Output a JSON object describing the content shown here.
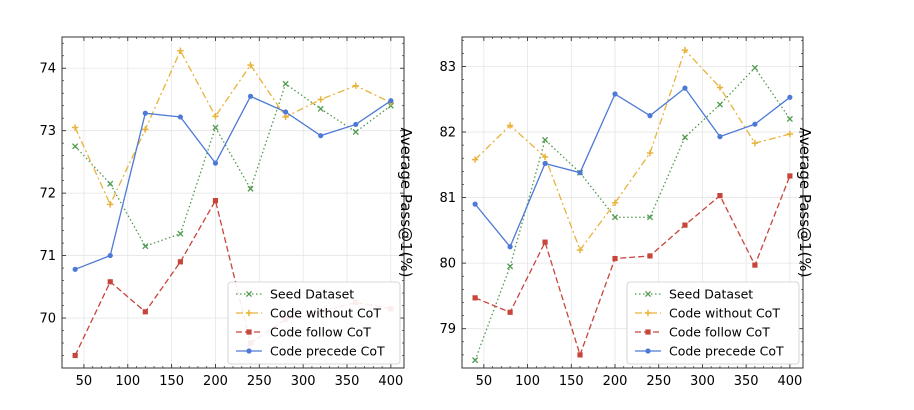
{
  "chart_data": [
    {
      "type": "line",
      "title": "",
      "xlabel": "",
      "ylabel": "Average Pass@1(%)",
      "xlim": [
        25,
        415
      ],
      "ylim": [
        69.2,
        74.5
      ],
      "xticks": [
        50,
        100,
        150,
        200,
        250,
        300,
        350,
        400
      ],
      "yticks": [
        70,
        71,
        72,
        73,
        74
      ],
      "grid": true,
      "legend_position": "lower-right",
      "x": [
        40,
        80,
        120,
        160,
        200,
        240,
        280,
        320,
        360,
        400
      ],
      "series": [
        {
          "name": "Seed Dataset",
          "color": "#4f9a4f",
          "marker": "x",
          "dash": "dotted",
          "values": [
            72.75,
            72.15,
            71.15,
            71.35,
            73.05,
            72.07,
            73.75,
            73.35,
            72.98,
            73.4
          ]
        },
        {
          "name": "Code without CoT",
          "color": "#e8b33a",
          "marker": "+",
          "dash": "dashdot",
          "values": [
            73.05,
            71.82,
            73.02,
            74.28,
            73.23,
            74.05,
            73.22,
            73.5,
            73.72,
            73.45
          ]
        },
        {
          "name": "Code follow CoT",
          "color": "#c7453a",
          "marker": "s",
          "dash": "dashed",
          "values": [
            69.4,
            70.58,
            70.1,
            70.9,
            71.88,
            69.6,
            69.98,
            70.1,
            70.25,
            70.15
          ]
        },
        {
          "name": "Code precede CoT",
          "color": "#4e79d6",
          "marker": "o",
          "dash": "solid",
          "values": [
            70.78,
            71.0,
            73.28,
            73.22,
            72.48,
            73.55,
            73.3,
            72.92,
            73.1,
            73.48
          ]
        }
      ]
    },
    {
      "type": "line",
      "title": "",
      "xlabel": "",
      "ylabel": "Average Pass@1(%)",
      "xlim": [
        25,
        415
      ],
      "ylim": [
        78.4,
        83.45
      ],
      "xticks": [
        50,
        100,
        150,
        200,
        250,
        300,
        350,
        400
      ],
      "yticks": [
        79,
        80,
        81,
        82,
        83
      ],
      "grid": true,
      "legend_position": "lower-right",
      "x": [
        40,
        80,
        120,
        160,
        200,
        240,
        280,
        320,
        360,
        400
      ],
      "series": [
        {
          "name": "Seed Dataset",
          "color": "#4f9a4f",
          "marker": "x",
          "dash": "dotted",
          "values": [
            78.52,
            79.95,
            81.88,
            81.38,
            80.7,
            80.7,
            81.92,
            82.42,
            82.98,
            82.2
          ]
        },
        {
          "name": "Code without CoT",
          "color": "#e8b33a",
          "marker": "+",
          "dash": "dashdot",
          "values": [
            81.58,
            82.1,
            81.62,
            80.2,
            80.92,
            81.68,
            83.25,
            82.68,
            81.83,
            81.97
          ]
        },
        {
          "name": "Code follow CoT",
          "color": "#c7453a",
          "marker": "s",
          "dash": "dashed",
          "values": [
            79.47,
            79.25,
            80.32,
            78.6,
            80.07,
            80.11,
            80.58,
            81.03,
            79.97,
            81.33
          ]
        },
        {
          "name": "Code precede CoT",
          "color": "#4e79d6",
          "marker": "o",
          "dash": "solid",
          "values": [
            80.9,
            80.25,
            81.52,
            81.38,
            82.58,
            82.25,
            82.67,
            81.93,
            82.12,
            82.53
          ]
        }
      ]
    }
  ]
}
